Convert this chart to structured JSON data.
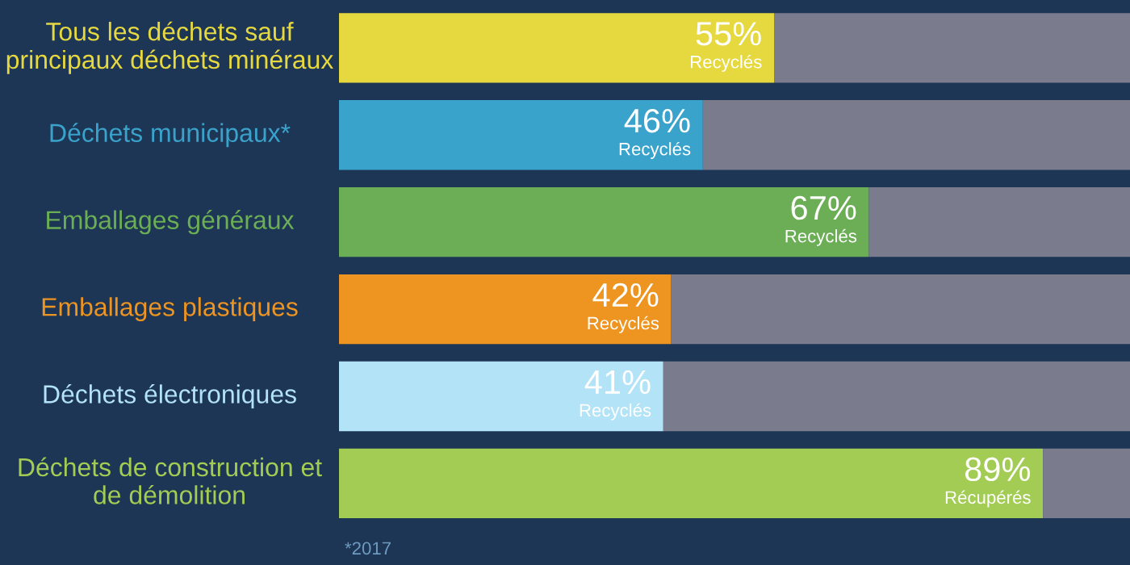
{
  "chart_data": {
    "type": "bar",
    "orientation": "horizontal",
    "stacked": true,
    "categories": [
      "Tous les déchets sauf principaux déchets minéraux",
      "Déchets municipaux*",
      "Emballages généraux",
      "Emballages plastiques",
      "Déchets électroniques",
      "Déchets de construction et de démolition"
    ],
    "series": [
      {
        "colors": [
          "#e6d940",
          "#3aa3cc",
          "#6bae55",
          "#ee9420",
          "#b3e3f7",
          "#a3cc55"
        ],
        "values": [
          55,
          46,
          67,
          42,
          41,
          89
        ],
        "value_labels": [
          "55%\nRecyclés",
          "46%\nRecyclés",
          "67%\nRecyclés",
          "42%\nRecyclés",
          "41%\nRecyclés",
          "89%\nRécupérés"
        ]
      },
      {
        "color": "#7a7b8d",
        "values": [
          45,
          54,
          33,
          58,
          59,
          11
        ]
      }
    ],
    "xlim": [
      0,
      100
    ],
    "annotations": [
      "*2017"
    ]
  }
}
